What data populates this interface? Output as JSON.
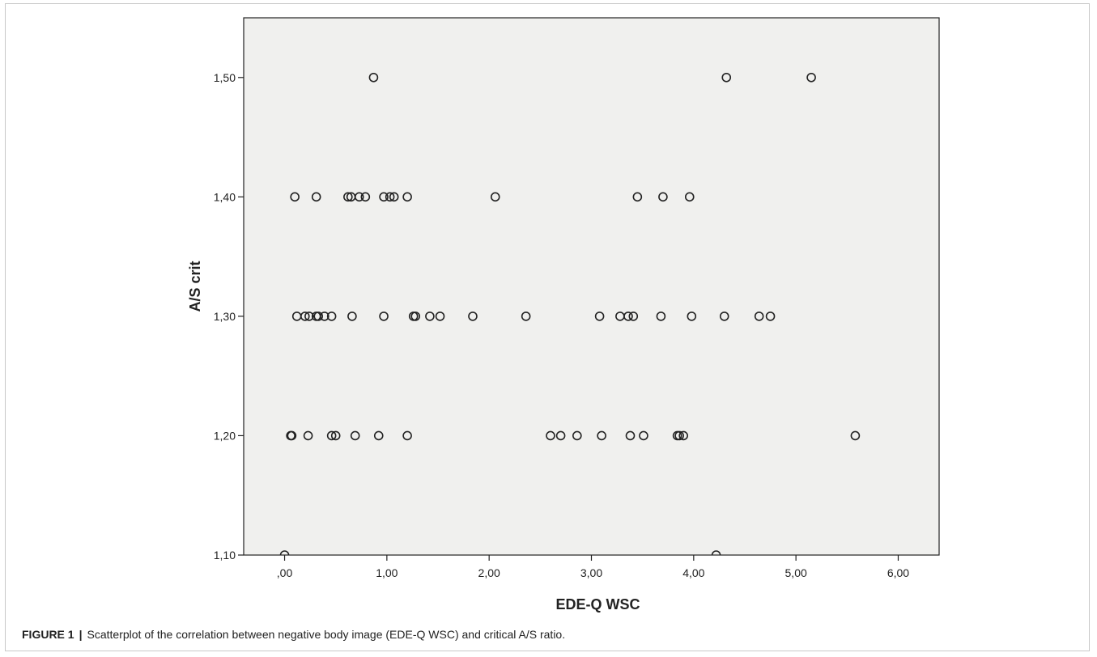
{
  "figure": {
    "label": "FIGURE 1",
    "separator": "|",
    "caption": "Scatterplot of the correlation between negative body image (EDE-Q WSC) and critical A/S ratio."
  },
  "colors": {
    "plot_background": "#f0f0ee",
    "marker_stroke": "#222222",
    "axis": "#222222"
  },
  "chart_data": {
    "type": "scatter",
    "title": "",
    "xlabel": "EDE-Q WSC",
    "ylabel": "A/S crit",
    "xlim": [
      -0.4,
      6.4
    ],
    "ylim": [
      1.1,
      1.55
    ],
    "x_ticks": [
      0,
      1,
      2,
      3,
      4,
      5,
      6
    ],
    "x_tick_labels": [
      ",00",
      "1,00",
      "2,00",
      "3,00",
      "4,00",
      "5,00",
      "6,00"
    ],
    "y_ticks": [
      1.1,
      1.2,
      1.3,
      1.4,
      1.5
    ],
    "y_tick_labels": [
      "1,10",
      "1,20",
      "1,30",
      "1,40",
      "1,50"
    ],
    "grid": false,
    "legend": "none",
    "points": [
      {
        "x": 0.0,
        "y": 1.1
      },
      {
        "x": 4.22,
        "y": 1.1
      },
      {
        "x": 0.06,
        "y": 1.2
      },
      {
        "x": 0.07,
        "y": 1.2
      },
      {
        "x": 0.23,
        "y": 1.2
      },
      {
        "x": 0.46,
        "y": 1.2
      },
      {
        "x": 0.5,
        "y": 1.2
      },
      {
        "x": 0.69,
        "y": 1.2
      },
      {
        "x": 0.92,
        "y": 1.2
      },
      {
        "x": 1.2,
        "y": 1.2
      },
      {
        "x": 2.6,
        "y": 1.2
      },
      {
        "x": 2.7,
        "y": 1.2
      },
      {
        "x": 2.86,
        "y": 1.2
      },
      {
        "x": 3.1,
        "y": 1.2
      },
      {
        "x": 3.38,
        "y": 1.2
      },
      {
        "x": 3.51,
        "y": 1.2
      },
      {
        "x": 3.84,
        "y": 1.2
      },
      {
        "x": 3.86,
        "y": 1.2
      },
      {
        "x": 3.9,
        "y": 1.2
      },
      {
        "x": 5.58,
        "y": 1.2
      },
      {
        "x": 0.12,
        "y": 1.3
      },
      {
        "x": 0.2,
        "y": 1.3
      },
      {
        "x": 0.24,
        "y": 1.3
      },
      {
        "x": 0.31,
        "y": 1.3
      },
      {
        "x": 0.33,
        "y": 1.3
      },
      {
        "x": 0.39,
        "y": 1.3
      },
      {
        "x": 0.46,
        "y": 1.3
      },
      {
        "x": 0.66,
        "y": 1.3
      },
      {
        "x": 0.97,
        "y": 1.3
      },
      {
        "x": 1.26,
        "y": 1.3
      },
      {
        "x": 1.28,
        "y": 1.3
      },
      {
        "x": 1.42,
        "y": 1.3
      },
      {
        "x": 1.52,
        "y": 1.3
      },
      {
        "x": 1.84,
        "y": 1.3
      },
      {
        "x": 2.36,
        "y": 1.3
      },
      {
        "x": 3.08,
        "y": 1.3
      },
      {
        "x": 3.28,
        "y": 1.3
      },
      {
        "x": 3.36,
        "y": 1.3
      },
      {
        "x": 3.41,
        "y": 1.3
      },
      {
        "x": 3.68,
        "y": 1.3
      },
      {
        "x": 3.98,
        "y": 1.3
      },
      {
        "x": 4.3,
        "y": 1.3
      },
      {
        "x": 4.64,
        "y": 1.3
      },
      {
        "x": 4.75,
        "y": 1.3
      },
      {
        "x": 0.1,
        "y": 1.4
      },
      {
        "x": 0.31,
        "y": 1.4
      },
      {
        "x": 0.62,
        "y": 1.4
      },
      {
        "x": 0.65,
        "y": 1.4
      },
      {
        "x": 0.73,
        "y": 1.4
      },
      {
        "x": 0.79,
        "y": 1.4
      },
      {
        "x": 0.97,
        "y": 1.4
      },
      {
        "x": 1.03,
        "y": 1.4
      },
      {
        "x": 1.07,
        "y": 1.4
      },
      {
        "x": 1.2,
        "y": 1.4
      },
      {
        "x": 2.06,
        "y": 1.4
      },
      {
        "x": 3.45,
        "y": 1.4
      },
      {
        "x": 3.7,
        "y": 1.4
      },
      {
        "x": 3.96,
        "y": 1.4
      },
      {
        "x": 0.87,
        "y": 1.5
      },
      {
        "x": 4.32,
        "y": 1.5
      },
      {
        "x": 5.15,
        "y": 1.5
      }
    ]
  }
}
